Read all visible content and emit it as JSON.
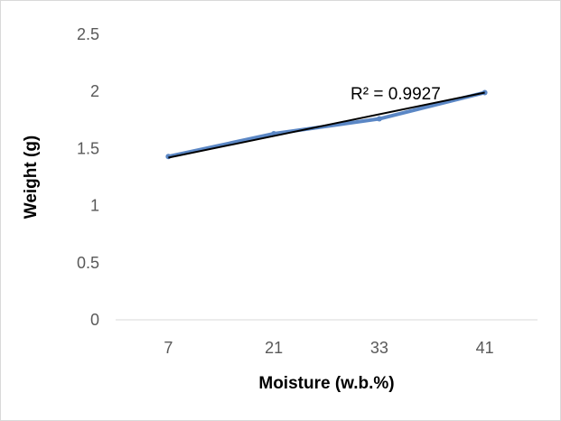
{
  "chart_data": {
    "type": "line",
    "categories": [
      "7",
      "21",
      "33",
      "41"
    ],
    "series": [
      {
        "values": [
          1.43,
          1.63,
          1.76,
          1.99
        ],
        "color": "#5b87c5",
        "marker": "circle"
      }
    ],
    "trendline": {
      "type": "linear",
      "values": [
        1.42,
        1.62,
        1.8,
        1.99
      ],
      "color": "#000000",
      "label": "R² = 0.9927"
    },
    "xlabel": "Moisture (w.b.%)",
    "ylabel": "Weight (g)",
    "yticks": [
      "0",
      "0.5",
      "1",
      "1.5",
      "2",
      "2.5"
    ],
    "ylim": [
      0,
      2.5
    ],
    "grid": false,
    "legend": "none"
  }
}
